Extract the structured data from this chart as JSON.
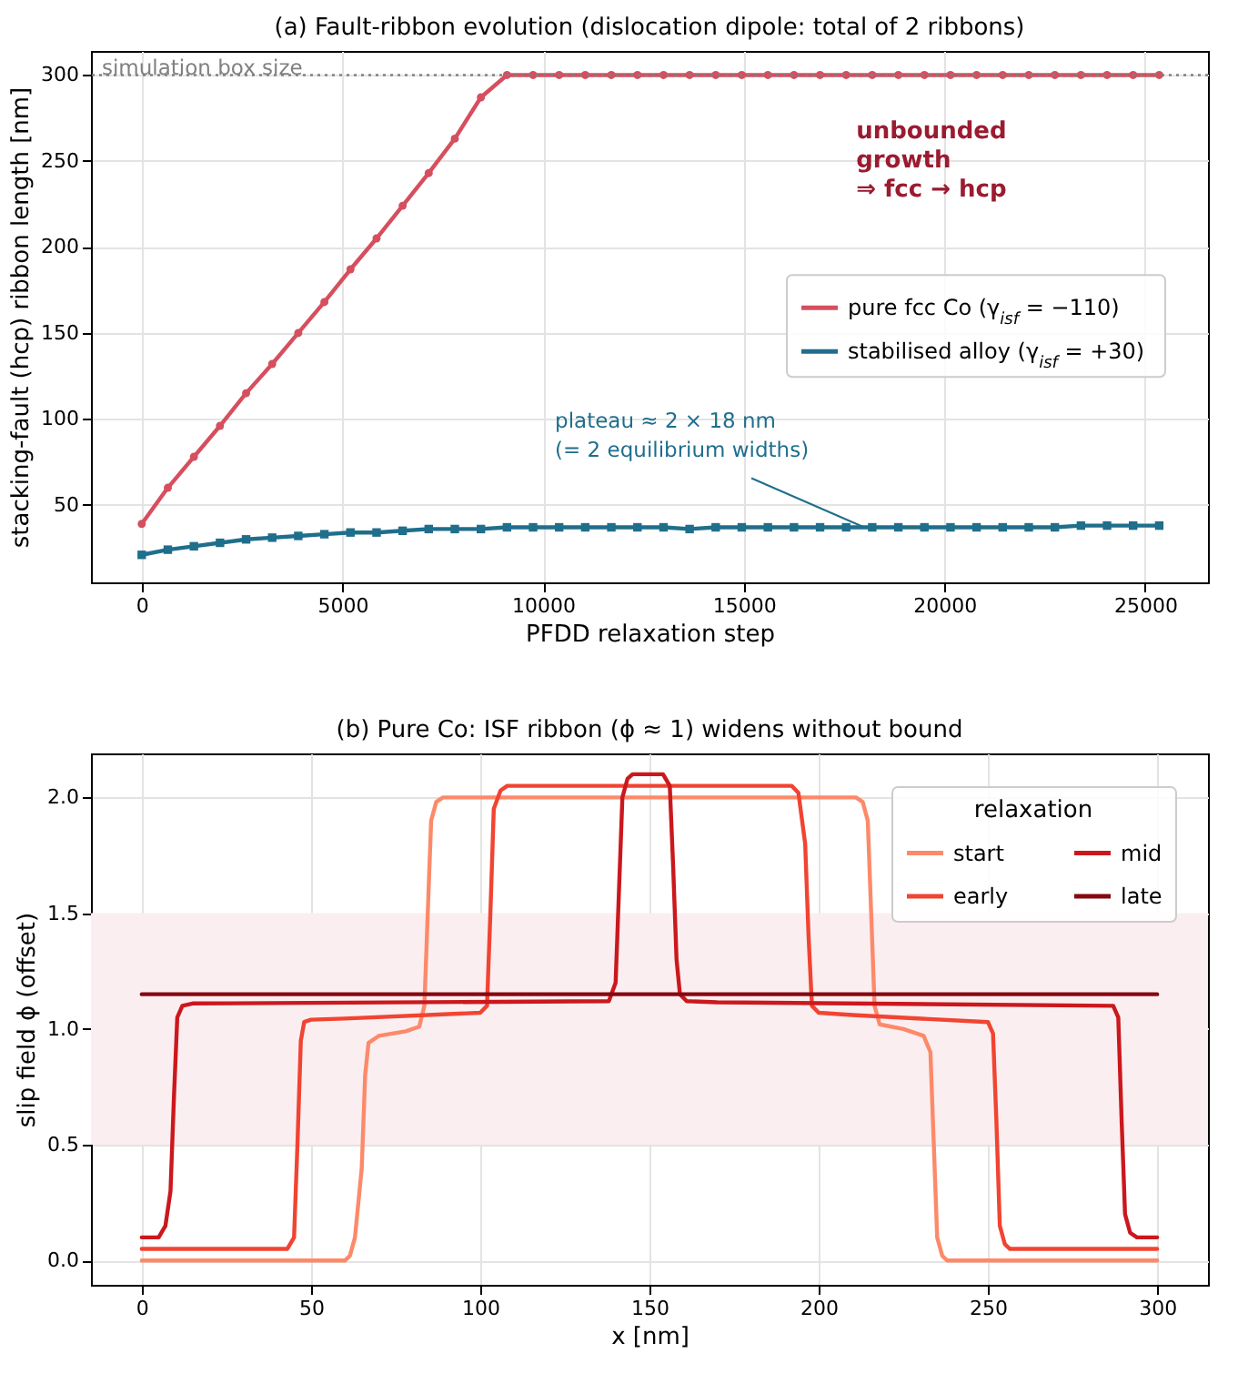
{
  "chart_data": [
    {
      "type": "line",
      "title": "(a) Fault-ribbon evolution  (dislocation dipole: total of 2 ribbons)",
      "xlabel": "PFDD relaxation step",
      "ylabel": "stacking-fault (hcp) ribbon length  [nm]",
      "x": [
        0,
        650,
        1300,
        1950,
        2600,
        3250,
        3900,
        4550,
        5200,
        5850,
        6500,
        7150,
        7800,
        8450,
        9100,
        9750,
        10400,
        11050,
        11700,
        12350,
        13000,
        13650,
        14300,
        14950,
        15600,
        16250,
        16900,
        17550,
        18200,
        18850,
        19500,
        20150,
        20800,
        21450,
        22100,
        22750,
        23400,
        24050,
        24700,
        25350
      ],
      "series": [
        {
          "name": "pure fcc Co (γ$_{isf}$ = −110)",
          "color": "#d64f5f",
          "marker": "circle",
          "values": [
            39,
            60,
            78,
            96,
            115,
            132,
            150,
            168,
            187,
            205,
            224,
            243,
            263,
            287,
            300,
            300,
            300,
            300,
            300,
            300,
            300,
            300,
            300,
            300,
            300,
            300,
            300,
            300,
            300,
            300,
            300,
            300,
            300,
            300,
            300,
            300,
            300,
            300,
            300,
            300
          ]
        },
        {
          "name": "stabilised alloy (γ$_{isf}$ = +30)",
          "color": "#1f6e8c",
          "marker": "square",
          "values": [
            21,
            24,
            26,
            28,
            30,
            31,
            32,
            33,
            34,
            34,
            35,
            36,
            36,
            36,
            37,
            37,
            37,
            37,
            37,
            37,
            37,
            36,
            37,
            37,
            37,
            37,
            37,
            37,
            37,
            37,
            37,
            37,
            37,
            37,
            37,
            37,
            38,
            38,
            38,
            38
          ]
        }
      ],
      "xlim": [
        -1265,
        26565
      ],
      "ylim": [
        5,
        314
      ],
      "xticks": [
        0,
        5000,
        10000,
        15000,
        20000,
        25000
      ],
      "yticks": [
        50,
        100,
        150,
        200,
        250,
        300
      ],
      "grid": true,
      "legend": "right",
      "ref_lines": [
        {
          "axis": "y",
          "value": 300,
          "label": "simulation box size",
          "color": "#808080",
          "line_style": "dotted"
        }
      ],
      "annotations": [
        "unbounded\ngrowth\n ⇒ fcc → hcp",
        {
          "text": "plateau ≈ 2 × 18 nm\n(= 2 equilibrium widths)",
          "x": 18000,
          "y": 37
        }
      ]
    },
    {
      "type": "line",
      "title": "(b) Pure Co: ISF ribbon (ϕ ≈ 1) widens without bound",
      "xlabel": "x  [nm]",
      "ylabel": "slip field  ϕ  (offset)",
      "legend_title": "relaxation",
      "series": [
        {
          "name": "start",
          "color": "#fc8a6a",
          "x": [
            0,
            60,
            61.5,
            63,
            65,
            66,
            67,
            70,
            78,
            82,
            83.5,
            84.5,
            85.5,
            87,
            89,
            211,
            213,
            214.5,
            215.5,
            216.5,
            218,
            225,
            231,
            233,
            234,
            235,
            236.5,
            238,
            300
          ],
          "values": [
            0,
            0,
            0.02,
            0.1,
            0.4,
            0.8,
            0.94,
            0.97,
            0.99,
            1.01,
            1.1,
            1.5,
            1.9,
            1.98,
            2.0,
            2.0,
            1.98,
            1.9,
            1.5,
            1.1,
            1.02,
            1.0,
            0.97,
            0.9,
            0.5,
            0.1,
            0.02,
            0,
            0
          ]
        },
        {
          "name": "early",
          "color": "#f14432",
          "x": [
            0,
            43,
            45,
            46,
            47,
            48,
            50,
            60,
            100,
            102,
            103,
            104,
            106,
            108,
            192,
            194,
            196,
            197,
            198,
            200,
            210,
            250,
            251.5,
            252.5,
            253.5,
            255,
            256.5,
            258,
            300
          ],
          "values": [
            0.05,
            0.05,
            0.1,
            0.5,
            0.95,
            1.03,
            1.04,
            1.045,
            1.07,
            1.1,
            1.5,
            1.95,
            2.03,
            2.05,
            2.05,
            2.02,
            1.8,
            1.4,
            1.1,
            1.07,
            1.06,
            1.03,
            0.98,
            0.6,
            0.15,
            0.07,
            0.05,
            0.05,
            0.05
          ]
        },
        {
          "name": "mid",
          "color": "#cb181d",
          "x": [
            0,
            5,
            7,
            8.5,
            9.5,
            10.5,
            12,
            15,
            138,
            140,
            141,
            142,
            143.5,
            145,
            154,
            156,
            157,
            158,
            159,
            161,
            170,
            287,
            288.5,
            289.5,
            290.5,
            292,
            294,
            300
          ],
          "values": [
            0.1,
            0.1,
            0.15,
            0.3,
            0.7,
            1.05,
            1.1,
            1.11,
            1.12,
            1.2,
            1.6,
            2.0,
            2.08,
            2.1,
            2.1,
            2.05,
            1.7,
            1.3,
            1.15,
            1.12,
            1.115,
            1.1,
            1.05,
            0.6,
            0.2,
            0.12,
            0.1,
            0.1
          ]
        },
        {
          "name": "late",
          "color": "#860811",
          "x": [
            0,
            300
          ],
          "values": [
            1.15,
            1.15
          ]
        }
      ],
      "xlim": [
        -15,
        315
      ],
      "ylim": [
        -0.105,
        2.19
      ],
      "xticks": [
        0,
        50,
        100,
        150,
        200,
        250,
        300
      ],
      "yticks": [
        {
          "value": 0,
          "label": "0.0"
        },
        {
          "value": 0.5,
          "label": "0.5"
        },
        {
          "value": 1,
          "label": "1.0"
        },
        {
          "value": 1.5,
          "label": "1.5"
        },
        {
          "value": 2,
          "label": "2.0"
        }
      ],
      "grid": true,
      "legend": "top right",
      "marker": "none",
      "bands": [
        {
          "axis": "y",
          "from": 0.5,
          "to": 1.5,
          "color": "#fbeef0"
        }
      ]
    }
  ]
}
